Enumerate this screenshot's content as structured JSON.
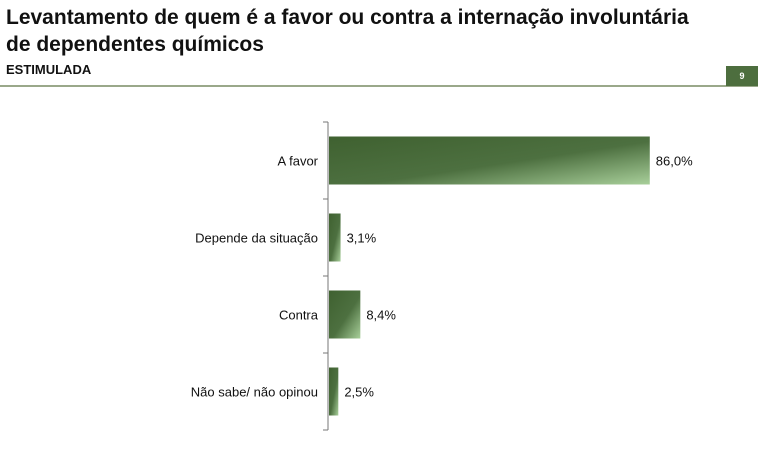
{
  "header": {
    "title": "Levantamento de quem é a favor ou contra a internação involuntária de dependentes químicos",
    "subtitle": "ESTIMULADA",
    "page_number": "9"
  },
  "colors": {
    "bar_dark": "#3f6130",
    "bar_light": "#a8cf9a",
    "accent": "#4d6e3e",
    "rule": "#9aa88a"
  },
  "chart_data": {
    "type": "bar",
    "orientation": "horizontal",
    "categories": [
      "A favor",
      "Depende da situação",
      "Contra",
      "Não sabe/ não opinou"
    ],
    "values": [
      86.0,
      3.1,
      8.4,
      2.5
    ],
    "value_labels": [
      "86,0%",
      "3,1%",
      "8,4%",
      "2,5%"
    ],
    "unit": "%",
    "xlim": [
      0,
      100
    ],
    "grid": false,
    "legend": "none"
  }
}
